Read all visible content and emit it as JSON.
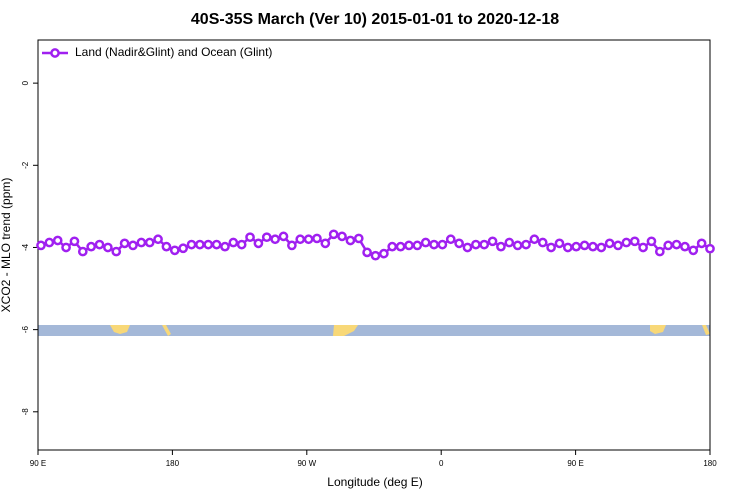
{
  "chart_data": {
    "type": "line",
    "title": "40S-35S March (Ver 10)   2015-01-01 to 2020-12-18",
    "x_label": "Longitude (deg E)",
    "y_label": "XCO2 - MLO trend (ppm)",
    "x": [
      92,
      97.6,
      103.2,
      108.8,
      114.4,
      120,
      125.6,
      131.2,
      136.8,
      142.4,
      148,
      153.6,
      159.2,
      164.8,
      170.4,
      176,
      181.6,
      187.2,
      192.8,
      198.4,
      204,
      209.6,
      215.2,
      220.8,
      226.4,
      232,
      237.6,
      243.2,
      248.8,
      254.4,
      260,
      265.6,
      271.2,
      276.8,
      282.4,
      288,
      293.6,
      299.2,
      304.8,
      310.4,
      316,
      321.6,
      327.2,
      332.8,
      338.4,
      344,
      349.6,
      355.2,
      360.8,
      366.4,
      372,
      377.6,
      383.2,
      388.8,
      394.4,
      400,
      405.6,
      411.2,
      416.8,
      422.4,
      428,
      433.6,
      439.2,
      444.8,
      450.4,
      456,
      461.6,
      467.2,
      472.8,
      478.4,
      484,
      489.6,
      495.2,
      500.8,
      506.4,
      512,
      517.6,
      523.2,
      528.8,
      534.4,
      540
    ],
    "series": [
      {
        "name": "Land (Nadir&Glint) and Ocean (Glint)",
        "color": "#a020f0",
        "values": [
          -3.95,
          -3.88,
          -3.83,
          -4.0,
          -3.85,
          -4.1,
          -3.98,
          -3.93,
          -4.0,
          -4.1,
          -3.9,
          -3.95,
          -3.88,
          -3.88,
          -3.8,
          -3.98,
          -4.07,
          -4.02,
          -3.93,
          -3.93,
          -3.93,
          -3.93,
          -3.98,
          -3.88,
          -3.93,
          -3.75,
          -3.9,
          -3.75,
          -3.8,
          -3.73,
          -3.95,
          -3.8,
          -3.8,
          -3.78,
          -3.9,
          -3.68,
          -3.73,
          -3.83,
          -3.78,
          -4.12,
          -4.2,
          -4.15,
          -3.98,
          -3.98,
          -3.95,
          -3.95,
          -3.88,
          -3.93,
          -3.93,
          -3.8,
          -3.9,
          -4.0,
          -3.93,
          -3.93,
          -3.85,
          -3.98,
          -3.88,
          -3.95,
          -3.93,
          -3.8,
          -3.88,
          -4.0,
          -3.9,
          -4.0,
          -3.98,
          -3.95,
          -3.98,
          -4.0,
          -3.9,
          -3.95,
          -3.88,
          -3.85,
          -4.0,
          -3.85,
          -4.1,
          -3.95,
          -3.93,
          -3.98,
          -4.07,
          -3.9,
          -4.03
        ]
      }
    ],
    "xlim": [
      90,
      540
    ],
    "xticks": [
      {
        "value": 90,
        "label": "90 E"
      },
      180,
      {
        "value": 270,
        "label": "90 W"
      },
      {
        "value": 360,
        "label": "0"
      },
      {
        "value": 450,
        "label": "90 E"
      },
      {
        "value": 540,
        "label": "180"
      }
    ],
    "ylim": [
      -8.93,
      1.05
    ],
    "yticks": [
      0,
      -2,
      -4,
      -6,
      -8
    ],
    "legend": "top-left"
  }
}
